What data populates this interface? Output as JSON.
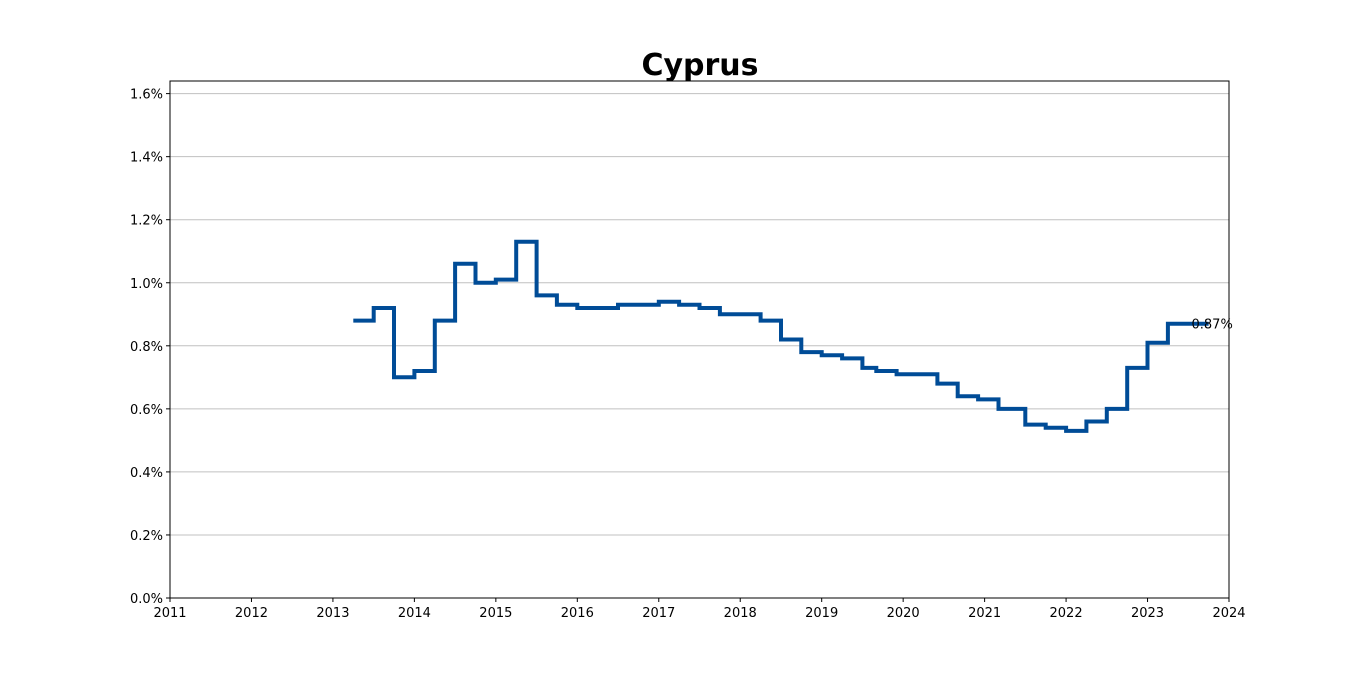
{
  "chart_data": {
    "type": "line",
    "step": "post",
    "title": "Cyprus",
    "xlabel": "",
    "ylabel": "",
    "xlim": [
      2011,
      2024
    ],
    "ylim": [
      0.0,
      1.64
    ],
    "x_ticks": [
      "2011",
      "2012",
      "2013",
      "2014",
      "2015",
      "2016",
      "2017",
      "2018",
      "2019",
      "2020",
      "2021",
      "2022",
      "2023",
      "2024"
    ],
    "y_ticks": [
      "0.0%",
      "0.2%",
      "0.4%",
      "0.6%",
      "0.8%",
      "1.0%",
      "1.2%",
      "1.4%",
      "1.6%"
    ],
    "grid": "horizontal",
    "line_color": "#004c97",
    "series": [
      {
        "x": [
          2013.25,
          2013.5,
          2013.75,
          2014.0,
          2014.25,
          2014.5,
          2014.75,
          2015.0,
          2015.25,
          2015.5,
          2015.75,
          2016.0,
          2016.25,
          2016.5,
          2016.75,
          2017.0,
          2017.25,
          2017.5,
          2017.75,
          2018.0,
          2018.25,
          2018.5,
          2018.75,
          2019.0,
          2019.25,
          2019.5,
          2019.67,
          2019.92,
          2020.17,
          2020.42,
          2020.67,
          2020.92,
          2021.17,
          2021.5,
          2021.75,
          2022.0,
          2022.25,
          2022.5,
          2022.75,
          2023.0,
          2023.25,
          2023.5
        ],
        "values": [
          0.88,
          0.92,
          0.7,
          0.72,
          0.88,
          1.06,
          1.0,
          1.01,
          1.13,
          0.96,
          0.93,
          0.92,
          0.92,
          0.93,
          0.93,
          0.94,
          0.93,
          0.92,
          0.9,
          0.9,
          0.88,
          0.82,
          0.78,
          0.77,
          0.76,
          0.73,
          0.72,
          0.71,
          0.71,
          0.68,
          0.64,
          0.63,
          0.6,
          0.55,
          0.54,
          0.53,
          0.56,
          0.6,
          0.73,
          0.81,
          0.87,
          0.87
        ]
      }
    ],
    "annotation": {
      "text": "0.87%",
      "x": 2023.5,
      "y": 0.87
    }
  }
}
